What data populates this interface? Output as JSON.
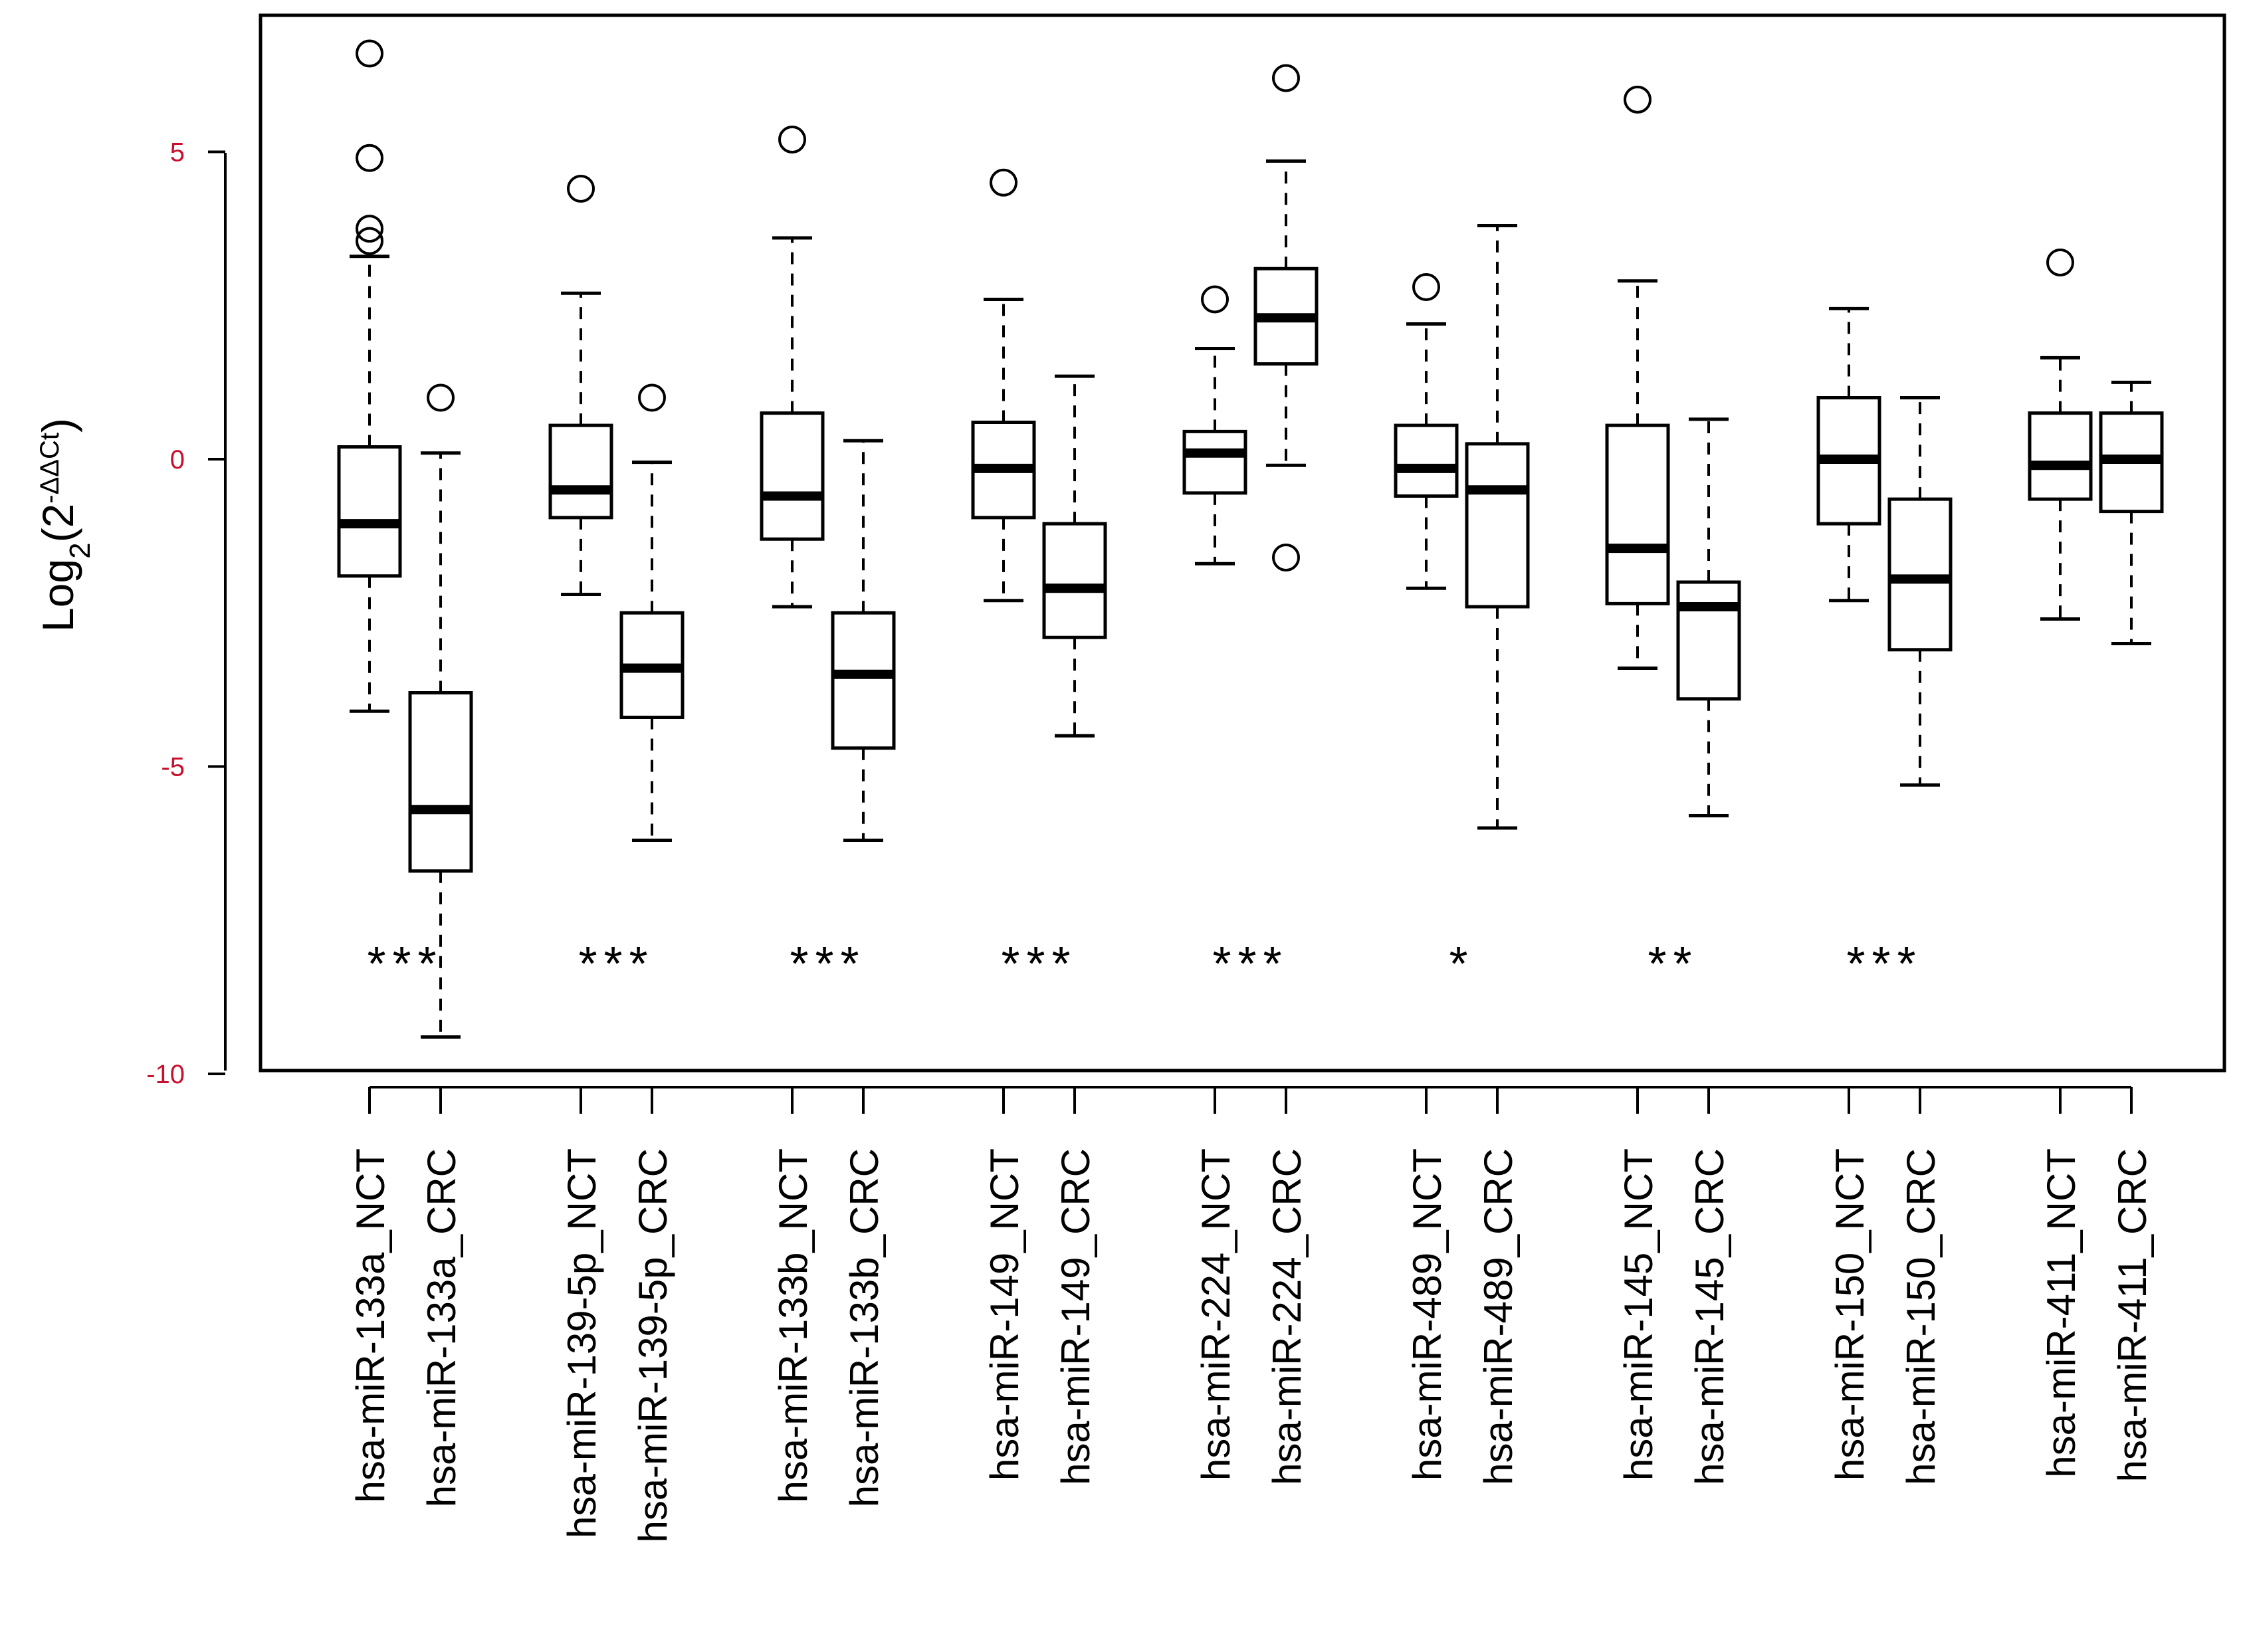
{
  "chart_data": {
    "type": "boxplot",
    "title": "",
    "xlabel": "",
    "ylabel_base": "Log",
    "ylabel_sub": "2",
    "ylabel_open": "(2",
    "ylabel_sup": "-ΔΔCt",
    "ylabel_close": ")",
    "ylim": [
      -10,
      7
    ],
    "yticks": [
      -10,
      -5,
      0,
      5
    ],
    "ytick_labels": [
      "-10",
      "-5",
      "0",
      "5"
    ],
    "grid": false,
    "groups": [
      {
        "significance": "***",
        "boxes": [
          {
            "label": "hsa-miR-133a_NCT",
            "lower_whisker": -4.1,
            "q1": -1.9,
            "median": -1.05,
            "q3": 0.2,
            "upper_whisker": 3.3,
            "outliers": [
              6.6,
              4.9,
              3.75,
              3.55
            ]
          },
          {
            "label": "hsa-miR-133a_CRC",
            "lower_whisker": -9.4,
            "q1": -6.7,
            "median": -5.7,
            "q3": -3.8,
            "upper_whisker": 0.1,
            "outliers": [
              1.0
            ]
          }
        ]
      },
      {
        "significance": "***",
        "boxes": [
          {
            "label": "hsa-miR-139-5p_NCT",
            "lower_whisker": -2.2,
            "q1": -0.95,
            "median": -0.5,
            "q3": 0.55,
            "upper_whisker": 2.7,
            "outliers": [
              4.4
            ]
          },
          {
            "label": "hsa-miR-139-5p_CRC",
            "lower_whisker": -6.2,
            "q1": -4.2,
            "median": -3.4,
            "q3": -2.5,
            "upper_whisker": -0.05,
            "outliers": [
              1.0
            ]
          }
        ]
      },
      {
        "significance": "***",
        "boxes": [
          {
            "label": "hsa-miR-133b_NCT",
            "lower_whisker": -2.4,
            "q1": -1.3,
            "median": -0.6,
            "q3": 0.75,
            "upper_whisker": 3.6,
            "outliers": [
              5.2
            ]
          },
          {
            "label": "hsa-miR-133b_CRC",
            "lower_whisker": -6.2,
            "q1": -4.7,
            "median": -3.5,
            "q3": -2.5,
            "upper_whisker": 0.3,
            "outliers": []
          }
        ]
      },
      {
        "significance": "***",
        "boxes": [
          {
            "label": "hsa-miR-149_NCT",
            "lower_whisker": -2.3,
            "q1": -0.95,
            "median": -0.15,
            "q3": 0.6,
            "upper_whisker": 2.6,
            "outliers": [
              4.5
            ]
          },
          {
            "label": "hsa-miR-149_CRC",
            "lower_whisker": -4.5,
            "q1": -2.9,
            "median": -2.1,
            "q3": -1.05,
            "upper_whisker": 1.35,
            "outliers": []
          }
        ]
      },
      {
        "significance": "***",
        "boxes": [
          {
            "label": "hsa-miR-224_NCT",
            "lower_whisker": -1.7,
            "q1": -0.55,
            "median": 0.1,
            "q3": 0.45,
            "upper_whisker": 1.8,
            "outliers": [
              2.6
            ]
          },
          {
            "label": "hsa-miR-224_CRC",
            "lower_whisker": -0.1,
            "q1": 1.55,
            "median": 2.3,
            "q3": 3.1,
            "upper_whisker": 4.85,
            "outliers": [
              6.2,
              -1.6
            ]
          }
        ]
      },
      {
        "significance": "*",
        "boxes": [
          {
            "label": "hsa-miR-489_NCT",
            "lower_whisker": -2.1,
            "q1": -0.6,
            "median": -0.15,
            "q3": 0.55,
            "upper_whisker": 2.2,
            "outliers": [
              2.8
            ]
          },
          {
            "label": "hsa-miR-489_CRC",
            "lower_whisker": -6.0,
            "q1": -2.4,
            "median": -0.5,
            "q3": 0.25,
            "upper_whisker": 3.8,
            "outliers": []
          }
        ]
      },
      {
        "significance": "**",
        "boxes": [
          {
            "label": "hsa-miR-145_NCT",
            "lower_whisker": -3.4,
            "q1": -2.35,
            "median": -1.45,
            "q3": 0.55,
            "upper_whisker": 2.9,
            "outliers": [
              5.85
            ]
          },
          {
            "label": "hsa-miR-145_CRC",
            "lower_whisker": -5.8,
            "q1": -3.9,
            "median": -2.4,
            "q3": -2.0,
            "upper_whisker": 0.65,
            "outliers": []
          }
        ]
      },
      {
        "significance": "***",
        "boxes": [
          {
            "label": "hsa-miR-150_NCT",
            "lower_whisker": -2.3,
            "q1": -1.05,
            "median": 0.0,
            "q3": 1.0,
            "upper_whisker": 2.45,
            "outliers": []
          },
          {
            "label": "hsa-miR-150_CRC",
            "lower_whisker": -5.3,
            "q1": -3.1,
            "median": -1.95,
            "q3": -0.65,
            "upper_whisker": 1.0,
            "outliers": []
          }
        ]
      },
      {
        "significance": "",
        "boxes": [
          {
            "label": "hsa-miR-411_NCT",
            "lower_whisker": -2.6,
            "q1": -0.65,
            "median": -0.1,
            "q3": 0.75,
            "upper_whisker": 1.65,
            "outliers": [
              3.2
            ]
          },
          {
            "label": "hsa-miR-411_CRC",
            "lower_whisker": -3.0,
            "q1": -0.85,
            "median": 0.0,
            "q3": 0.75,
            "upper_whisker": 1.25,
            "outliers": []
          }
        ]
      }
    ]
  }
}
